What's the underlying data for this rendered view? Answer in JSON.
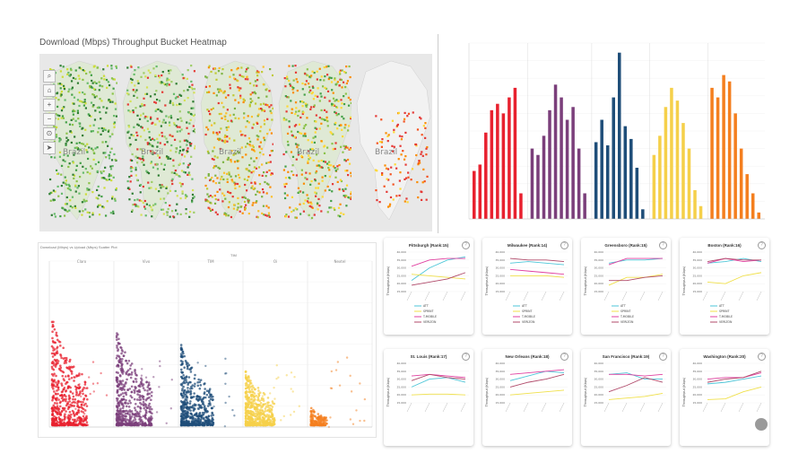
{
  "heatmap": {
    "title": "Download (Mbps) Throughput Bucket Heatmap",
    "map_label": "Brazil",
    "tools": [
      "search-icon",
      "home-icon",
      "zoom-in-icon",
      "zoom-out-icon",
      "pin-icon",
      "arrow-icon"
    ]
  },
  "chart_data": [
    {
      "type": "bar",
      "title": "",
      "groups": [
        {
          "name": "Claro",
          "color": "#e8212f",
          "values": [
            15,
            17,
            27,
            34,
            36,
            33,
            38,
            41,
            8
          ]
        },
        {
          "name": "Vivo",
          "color": "#7b3f7b",
          "values": [
            22,
            20,
            26,
            34,
            42,
            38,
            31,
            35,
            22,
            8
          ]
        },
        {
          "name": "TIM",
          "color": "#1f4e79",
          "values": [
            24,
            31,
            23,
            38,
            52,
            29,
            25,
            16,
            3
          ]
        },
        {
          "name": "Oi",
          "color": "#f5d04a",
          "values": [
            20,
            26,
            35,
            41,
            37,
            30,
            22,
            9,
            4
          ]
        },
        {
          "name": "Nextel",
          "color": "#f47f1f",
          "values": [
            41,
            38,
            45,
            43,
            33,
            22,
            14,
            8,
            2
          ]
        }
      ],
      "ylim": [
        0,
        55
      ]
    },
    {
      "type": "scatter",
      "title": "Download (Mbps) vs Upload (Mbps) Scatter Plot",
      "facet_header": "TIM",
      "facets": [
        {
          "name": "Claro",
          "color": "#e8212f"
        },
        {
          "name": "Vivo",
          "color": "#7b3f7b"
        },
        {
          "name": "TIM",
          "color": "#1f4e79"
        },
        {
          "name": "Oi",
          "color": "#f5d04a"
        },
        {
          "name": "Nextel",
          "color": "#f47f1f"
        }
      ]
    },
    {
      "type": "line",
      "ylabel": "Throughput (Kbps)",
      "yticks": [
        "40,000",
        "35,000",
        "30,000",
        "25,000",
        "20,000",
        "15,000"
      ],
      "ylim": [
        15000,
        40000
      ],
      "legend": [
        {
          "name": "ATT",
          "color": "#4ec6d8"
        },
        {
          "name": "SPRINT",
          "color": "#f0e04a"
        },
        {
          "name": "T-MOBILE",
          "color": "#e040a0"
        },
        {
          "name": "VERIZON",
          "color": "#b04a6a"
        }
      ],
      "cities": [
        {
          "title": "Pittsburgh (Rank:15)",
          "series": [
            [
              22000,
              30000,
              35000,
              37000
            ],
            [
              26000,
              25000,
              24000,
              23000
            ],
            [
              31000,
              35000,
              36000,
              36000
            ],
            [
              19000,
              21000,
              23000,
              27000
            ]
          ]
        },
        {
          "title": "Milwaukee (Rank:14)",
          "series": [
            [
              33000,
              34000,
              33000,
              32000
            ],
            [
              25000,
              25000,
              25000,
              24000
            ],
            [
              29000,
              28000,
              27000,
              26000
            ],
            [
              36000,
              35000,
              35000,
              34000
            ]
          ]
        },
        {
          "title": "Greensboro (Rank:15)",
          "series": [
            [
              33000,
              35000,
              35000,
              36000
            ],
            [
              19000,
              24000,
              24000,
              26000
            ],
            [
              32000,
              36000,
              36000,
              36000
            ],
            [
              22000,
              22000,
              24000,
              25000
            ]
          ]
        },
        {
          "title": "Boston (Rank:16)",
          "series": [
            [
              33000,
              34000,
              36000,
              34000
            ],
            [
              21000,
              20000,
              25000,
              27000
            ],
            [
              33000,
              36000,
              34000,
              35000
            ],
            [
              34000,
              36000,
              35000,
              35000
            ]
          ]
        },
        {
          "title": "St. Louis (Rank:17)",
          "series": [
            [
              25000,
              30000,
              31000,
              28000
            ],
            [
              20000,
              20500,
              20500,
              20000
            ],
            [
              32000,
              33000,
              32000,
              31000
            ],
            [
              29000,
              33000,
              31000,
              30000
            ]
          ]
        },
        {
          "title": "New Orleans (Rank:18)",
          "series": [
            [
              29000,
              32000,
              35000,
              34000
            ],
            [
              20000,
              21000,
              22000,
              23000
            ],
            [
              33000,
              34000,
              35000,
              36000
            ],
            [
              25000,
              28000,
              30000,
              33000
            ]
          ]
        },
        {
          "title": "San Francisco (Rank:19)",
          "series": [
            [
              33000,
              34000,
              30000,
              30000
            ],
            [
              17000,
              18000,
              19000,
              21000
            ],
            [
              33000,
              33000,
              32000,
              33000
            ],
            [
              22000,
              26000,
              31000,
              28000
            ]
          ]
        },
        {
          "title": "Washington (Rank:20)",
          "series": [
            [
              27000,
              28000,
              30000,
              32000
            ],
            [
              17000,
              17500,
              22000,
              25000
            ],
            [
              30000,
              31000,
              31000,
              34000
            ],
            [
              28000,
              30000,
              31000,
              35000
            ]
          ]
        }
      ]
    }
  ]
}
